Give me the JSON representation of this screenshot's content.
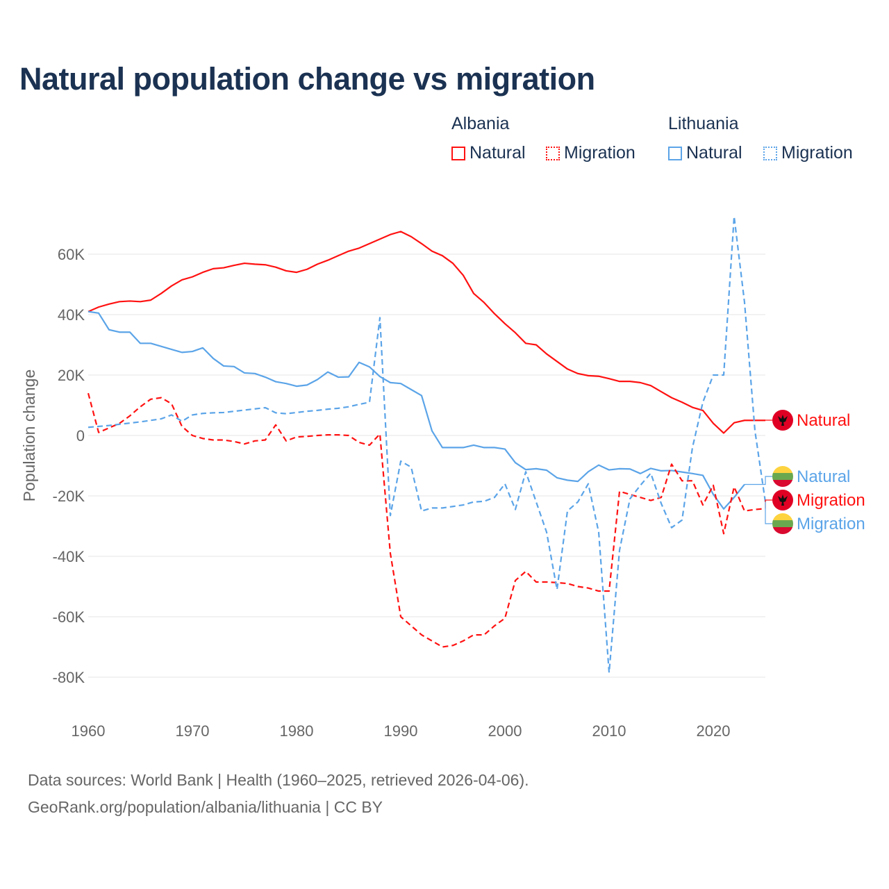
{
  "title": "Natural population change vs migration",
  "legend": {
    "groups": [
      {
        "name": "Albania",
        "items": [
          "Natural",
          "Migration"
        ],
        "color": "#ff1111"
      },
      {
        "name": "Lithuania",
        "items": [
          "Natural",
          "Migration"
        ],
        "color": "#5ba4e8"
      }
    ]
  },
  "footer": {
    "line1": "Data sources: World Bank | Health (1960–2025, retrieved 2026-04-06).",
    "line2": "GeoRank.org/population/albania/lithuania | CC BY"
  },
  "chart_data": {
    "type": "line",
    "title": "Natural population change vs migration",
    "xlabel": "",
    "ylabel": "Population change",
    "xlim": [
      1960,
      2025
    ],
    "ylim": [
      -90000,
      75000
    ],
    "x_ticks": [
      1960,
      1970,
      1980,
      1990,
      2000,
      2010,
      2020
    ],
    "x_tick_labels": [
      "1960",
      "1970",
      "1980",
      "1990",
      "2000",
      "2010",
      "2020"
    ],
    "y_ticks": [
      60000,
      40000,
      20000,
      0,
      -20000,
      -40000,
      -60000,
      -80000
    ],
    "y_tick_labels": [
      "60K",
      "40K",
      "20K",
      "0",
      "-20K",
      "-40K",
      "-60K",
      "-80K"
    ],
    "grid": true,
    "legend_position": "top-right",
    "start_year": 1960,
    "series": [
      {
        "name": "Albania Natural",
        "end_label": "Natural",
        "flag": "albania",
        "color": "#ff1111",
        "dash": false,
        "values": [
          41,
          42.5,
          43.5,
          44.3,
          44.5,
          44.3,
          44.8,
          47,
          49.5,
          51.5,
          52.5,
          54,
          55.2,
          55.5,
          56.3,
          57,
          56.7,
          56.5,
          55.7,
          54.5,
          54,
          55,
          56.7,
          58,
          59.5,
          61,
          62,
          63.5,
          65,
          66.5,
          67.5,
          65.8,
          63.5,
          61,
          59.5,
          57,
          53,
          47,
          44,
          40.3,
          37,
          34,
          30.5,
          30,
          27,
          24.5,
          22,
          20.5,
          19.8,
          19.6,
          18.8,
          17.9,
          17.9,
          17.5,
          16.5,
          14.5,
          12.5,
          11,
          9.3,
          8.3,
          4,
          0.8,
          4.2,
          5,
          5,
          5
        ]
      },
      {
        "name": "Lithuania Natural",
        "end_label": "Natural",
        "flag": "lithuania",
        "color": "#5ba4e8",
        "dash": false,
        "values": [
          41,
          40.5,
          35,
          34.2,
          34.2,
          30.5,
          30.5,
          29.5,
          28.5,
          27.5,
          27.8,
          29,
          25.5,
          23,
          22.8,
          20.7,
          20.5,
          19.3,
          17.8,
          17.2,
          16.3,
          16.7,
          18.5,
          21,
          19.3,
          19.4,
          24.2,
          22.7,
          19.5,
          17.5,
          17.2,
          15.2,
          13.2,
          1.5,
          -4,
          -4,
          -4,
          -3.2,
          -4,
          -4,
          -4.5,
          -9,
          -11.3,
          -11,
          -11.5,
          -14,
          -14.8,
          -15.2,
          -12,
          -9.8,
          -11.4,
          -11,
          -11.1,
          -12.6,
          -10.9,
          -11.7,
          -11.6,
          -12.1,
          -12.6,
          -13.2,
          -19.5,
          -24.3,
          -20.5,
          -16.2
        ]
      },
      {
        "name": "Albania Migration",
        "end_label": "Migration",
        "flag": "albania",
        "color": "#ff1111",
        "dash": true,
        "values": [
          14,
          1,
          2.5,
          4,
          6.5,
          9.5,
          12,
          12.5,
          10.5,
          3,
          0,
          -1,
          -1.5,
          -1.5,
          -2,
          -2.8,
          -1.8,
          -1.5,
          3.5,
          -1.8,
          -0.5,
          -0.3,
          0,
          0.2,
          0.2,
          0,
          -2.3,
          -3.2,
          0.5,
          -39,
          -60,
          -63,
          -66,
          -68,
          -70,
          -69.5,
          -68,
          -66,
          -66,
          -63,
          -60.5,
          -48,
          -45,
          -48.5,
          -48.5,
          -48.7,
          -49,
          -50,
          -50.5,
          -51.5,
          -51.5,
          -18.5,
          -19.5,
          -20.5,
          -21.5,
          -20.5,
          -9.5,
          -15,
          -15,
          -23,
          -16.5,
          -32.5,
          -17,
          -25,
          -24.5,
          -24.2
        ]
      },
      {
        "name": "Lithuania Migration",
        "end_label": "Migration",
        "flag": "lithuania",
        "color": "#5ba4e8",
        "dash": true,
        "values": [
          2.7,
          3,
          3.3,
          3.7,
          4.1,
          4.5,
          5,
          5.5,
          6.8,
          4.7,
          6.8,
          7.3,
          7.5,
          7.6,
          8,
          8.4,
          8.8,
          9.2,
          7.5,
          7.2,
          7.6,
          8,
          8.3,
          8.7,
          9,
          9.5,
          10.3,
          11,
          39,
          -26.5,
          -8.5,
          -10.5,
          -25,
          -24,
          -24,
          -23.5,
          -23,
          -22,
          -21.8,
          -20.5,
          -16,
          -24.5,
          -12,
          -22,
          -32,
          -51,
          -25,
          -22,
          -16,
          -32,
          -78.5,
          -38,
          -21,
          -16.5,
          -12.5,
          -22.5,
          -30.5,
          -28,
          -4,
          11,
          20,
          20,
          72.5,
          44,
          1.5,
          -22
        ]
      }
    ],
    "value_unit": "thousands"
  }
}
